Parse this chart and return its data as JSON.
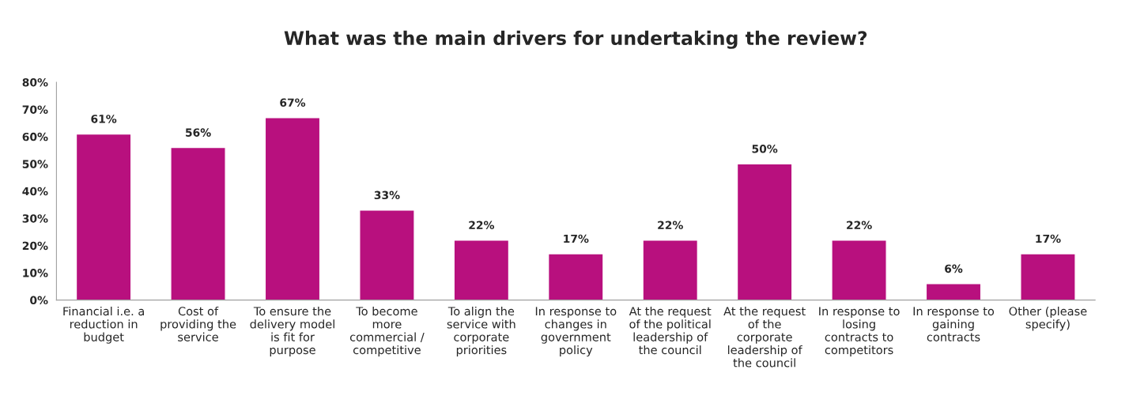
{
  "chart_data": {
    "type": "bar",
    "title": "What was the main drivers for undertaking the review?",
    "categories": [
      "Financial i.e. a\nreduction in\nbudget",
      "Cost of\nproviding the\nservice",
      "To ensure the\ndelivery model\nis fit for\npurpose",
      "To become\nmore\ncommercial /\ncompetitive",
      "To align the\nservice with\ncorporate\npriorities",
      "In response to\nchanges in\ngovernment\npolicy",
      "At the request\nof the political\nleadership of\nthe council",
      "At the request\nof the\ncorporate\nleadership of\nthe council",
      "In response to\nlosing\ncontracts to\ncompetitors",
      "In response to\ngaining\ncontracts",
      "Other (please\nspecify)"
    ],
    "values": [
      61,
      56,
      67,
      33,
      22,
      17,
      22,
      50,
      22,
      6,
      17
    ],
    "value_labels": [
      "61%",
      "56%",
      "67%",
      "33%",
      "22%",
      "17%",
      "22%",
      "50%",
      "22%",
      "6%",
      "17%"
    ],
    "color": "#b8107e",
    "ylim": [
      0,
      80
    ],
    "yticks": [
      {
        "value": 0,
        "label": "0%"
      },
      {
        "value": 10,
        "label": "10%"
      },
      {
        "value": 20,
        "label": "20%"
      },
      {
        "value": 30,
        "label": "30%"
      },
      {
        "value": 40,
        "label": "40%"
      },
      {
        "value": 50,
        "label": "50%"
      },
      {
        "value": 60,
        "label": "60%"
      },
      {
        "value": 70,
        "label": "70%"
      },
      {
        "value": 80,
        "label": "80%"
      }
    ],
    "grid": false,
    "legend": false
  }
}
